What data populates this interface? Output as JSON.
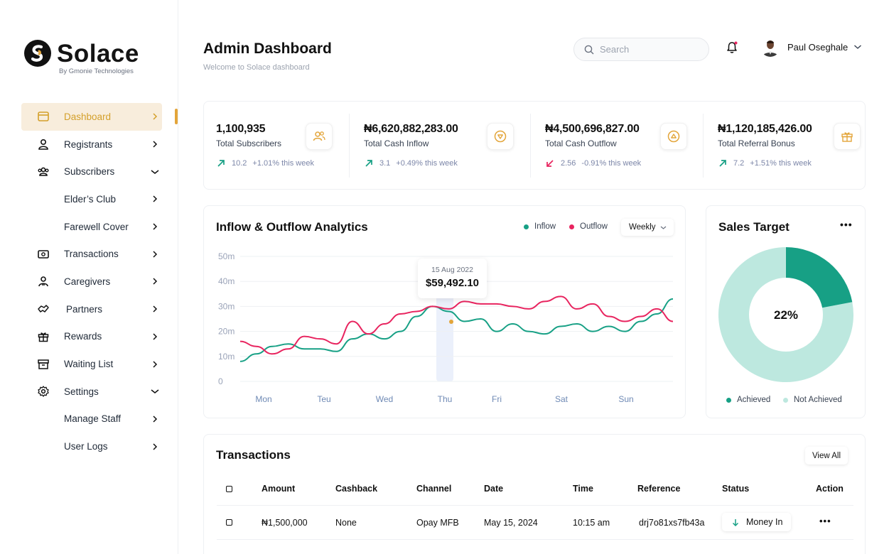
{
  "brand": {
    "name": "Solace",
    "tagline": "By Gmonie Technologies"
  },
  "sidebar": {
    "items": [
      {
        "label": "Dashboard",
        "icon": "layout-icon",
        "chevron": "right",
        "active": true
      },
      {
        "label": "Registrants",
        "icon": "user-icon",
        "chevron": "right"
      },
      {
        "label": "Subscribers",
        "icon": "users-icon",
        "chevron": "down"
      },
      {
        "label": "Elder’s Club",
        "chevron": "right",
        "sub": true
      },
      {
        "label": "Farewell Cover",
        "chevron": "right",
        "sub": true
      },
      {
        "label": "Transactions",
        "icon": "money-icon",
        "chevron": "right"
      },
      {
        "label": "Caregivers",
        "icon": "caregiver-icon",
        "chevron": "right"
      },
      {
        "label": "Partners",
        "icon": "handshake-icon",
        "chevron": "right"
      },
      {
        "label": "Rewards",
        "icon": "gift-icon",
        "chevron": "right"
      },
      {
        "label": "Waiting List",
        "icon": "archive-icon",
        "chevron": "right"
      },
      {
        "label": "Settings",
        "icon": "gear-icon",
        "chevron": "down"
      },
      {
        "label": "Manage Staff",
        "chevron": "right",
        "sub": true
      },
      {
        "label": "User Logs",
        "chevron": "right",
        "sub": true
      }
    ]
  },
  "header": {
    "title": "Admin Dashboard",
    "subtitle": "Welcome to Solace dashboard",
    "search_placeholder": "Search",
    "user_name": "Paul Oseghale"
  },
  "stats": [
    {
      "value": "1,100,935",
      "label": "Total Subscribers",
      "trend": "up",
      "change": "10.2",
      "note": "+1.01% this week",
      "icon": "users-icon"
    },
    {
      "value": "₦6,620,882,283.00",
      "label": "Total Cash Inflow",
      "trend": "up",
      "change": "3.1",
      "note": "+0.49% this week",
      "icon": "arrow-down-circle-icon"
    },
    {
      "value": "₦4,500,696,827.00",
      "label": "Total Cash Outflow",
      "trend": "down",
      "change": "2.56",
      "note": "-0.91% this week",
      "icon": "arrow-up-circle-icon"
    },
    {
      "value": "₦1,120,185,426.00",
      "label": "Total Referral Bonus",
      "trend": "up",
      "change": "7.2",
      "note": "+1.51% this week",
      "icon": "gift-icon"
    }
  ],
  "colors": {
    "accent": "#e3a53a",
    "inflow": "#17a085",
    "outflow": "#e8245f",
    "achieved": "#17a085",
    "not_achieved": "#bde8df",
    "trend_up": "#17a085",
    "trend_down": "#e8245f"
  },
  "analytics": {
    "title": "Inflow & Outflow Analytics",
    "legend_inflow": "Inflow",
    "legend_outflow": "Outflow",
    "period": "Weekly",
    "tooltip_date": "15 Aug 2022",
    "tooltip_value": "$59,492.10"
  },
  "chart_data": {
    "type": "line",
    "categories": [
      "Mon",
      "Teu",
      "Wed",
      "Thu",
      "Fri",
      "Sat",
      "Sun"
    ],
    "y_ticks": [
      "50m",
      "40m",
      "30m",
      "20m",
      "10m",
      "0"
    ],
    "ylim": [
      0,
      50
    ],
    "highlight_category": "Thu",
    "series": [
      {
        "name": "Inflow",
        "x": [
          0.0,
          0.25,
          0.5,
          0.75,
          1.0,
          1.25,
          1.5,
          1.75,
          2.0,
          2.25,
          2.5,
          2.75,
          3.0,
          3.25,
          3.5,
          3.75,
          4.0,
          4.25,
          4.5,
          4.75,
          5.0,
          5.25,
          5.5,
          5.75,
          6.0,
          6.25,
          6.5,
          6.75
        ],
        "values": [
          8,
          11,
          14,
          15,
          13,
          13,
          12,
          17,
          19,
          17,
          20,
          26,
          30,
          28,
          24,
          25,
          20,
          23,
          20,
          19,
          22,
          23,
          20,
          22,
          20,
          24,
          27,
          33
        ]
      },
      {
        "name": "Outflow",
        "x": [
          0.0,
          0.25,
          0.5,
          0.75,
          1.0,
          1.25,
          1.5,
          1.75,
          2.0,
          2.25,
          2.5,
          2.75,
          3.0,
          3.25,
          3.5,
          3.75,
          4.0,
          4.25,
          4.5,
          4.75,
          5.0,
          5.25,
          5.5,
          5.75,
          6.0,
          6.25,
          6.5,
          6.75
        ],
        "values": [
          16,
          14,
          11,
          13,
          18,
          17,
          15,
          24,
          19,
          23,
          27,
          28,
          30,
          29,
          32,
          31,
          31,
          30,
          29,
          32,
          34,
          29,
          31,
          26,
          24,
          26,
          29,
          24
        ]
      }
    ]
  },
  "sales_target": {
    "title": "Sales Target",
    "center_label": "22%",
    "achieved_fraction": 0.22,
    "legend_achieved": "Achieved",
    "legend_not_achieved": "Not Achieved"
  },
  "transactions": {
    "title": "Transactions",
    "view_all": "View All",
    "headers": [
      "Amount",
      "Cashback",
      "Channel",
      "Date",
      "Time",
      "Reference",
      "Status",
      "Action"
    ],
    "rows": [
      {
        "amount": "₦1,500,000",
        "cashback": "None",
        "channel": "Opay MFB",
        "date": "May 15, 2024",
        "time": "10:15 am",
        "reference": "drj7o81xs7fb43a",
        "status": "Money In"
      }
    ]
  }
}
